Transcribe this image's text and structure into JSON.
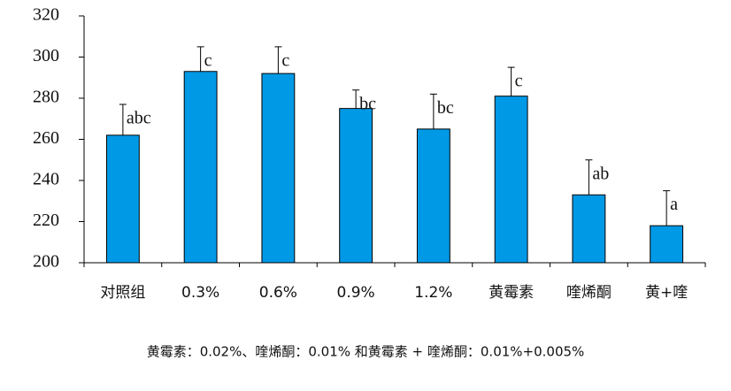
{
  "chart_data": {
    "type": "bar",
    "categories": [
      "对照组",
      "0.3%",
      "0.6%",
      "0.9%",
      "1.2%",
      "黄霉素",
      "喹烯酮",
      "黄+喹"
    ],
    "values": [
      262,
      293,
      292,
      275,
      265,
      281,
      233,
      218
    ],
    "errors": [
      15,
      12,
      13,
      9,
      17,
      14,
      17,
      17
    ],
    "letters": [
      "abc",
      "c",
      "c",
      "bc",
      "bc",
      "c",
      "ab",
      "a"
    ],
    "color": "#0099e6",
    "ylim": [
      200,
      320
    ],
    "yticks": [
      200,
      220,
      240,
      260,
      280,
      300,
      320
    ],
    "grid": false,
    "note": "黄霉素：0.02%、喹烯酮：0.01% 和黄霉素 + 喹烯酮：0.01%+0.005%"
  }
}
